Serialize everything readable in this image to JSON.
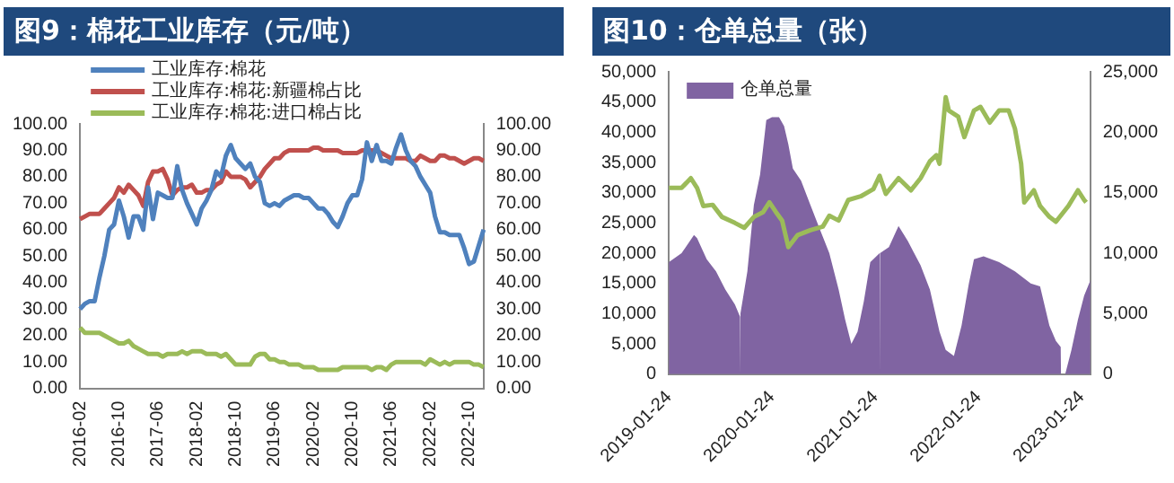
{
  "chart_data": [
    {
      "type": "line",
      "title": "图9：棉花工业库存（元/吨）",
      "legend": "top",
      "categories": [
        "2016-02",
        null,
        null,
        null,
        null,
        null,
        null,
        null,
        "2016-10",
        null,
        null,
        null,
        null,
        null,
        null,
        null,
        "2017-06",
        null,
        null,
        null,
        null,
        null,
        null,
        null,
        "2018-02",
        null,
        null,
        null,
        null,
        null,
        null,
        null,
        "2018-10",
        null,
        null,
        null,
        null,
        null,
        null,
        null,
        "2019-06",
        null,
        null,
        null,
        null,
        null,
        null,
        null,
        "2020-02",
        null,
        null,
        null,
        null,
        null,
        null,
        null,
        "2020-10",
        null,
        null,
        null,
        null,
        null,
        null,
        null,
        "2021-06",
        null,
        null,
        null,
        null,
        null,
        null,
        null,
        "2022-02",
        null,
        null,
        null,
        null,
        null,
        null,
        null,
        "2022-10",
        null,
        null,
        null
      ],
      "ylim": [
        0,
        100
      ],
      "yticks": [
        {
          "value": 0,
          "label": "0.00"
        },
        {
          "value": 10,
          "label": "10.00"
        },
        {
          "value": 20,
          "label": "20.00"
        },
        {
          "value": 30,
          "label": "30.00"
        },
        {
          "value": 40,
          "label": "40.00"
        },
        {
          "value": 50,
          "label": "50.00"
        },
        {
          "value": 60,
          "label": "60.00"
        },
        {
          "value": 70,
          "label": "70.00"
        },
        {
          "value": 80,
          "label": "80.00"
        },
        {
          "value": 90,
          "label": "90.00"
        },
        {
          "value": 100,
          "label": "100.00"
        }
      ],
      "y2lim": [
        0,
        100
      ],
      "y2ticks": [
        {
          "value": 0,
          "label": "0.00"
        },
        {
          "value": 10,
          "label": "10.00"
        },
        {
          "value": 20,
          "label": "20.00"
        },
        {
          "value": 30,
          "label": "30.00"
        },
        {
          "value": 40,
          "label": "40.00"
        },
        {
          "value": 50,
          "label": "50.00"
        },
        {
          "value": 60,
          "label": "60.00"
        },
        {
          "value": 70,
          "label": "70.00"
        },
        {
          "value": 80,
          "label": "80.00"
        },
        {
          "value": 90,
          "label": "90.00"
        },
        {
          "value": 100,
          "label": "100.00"
        }
      ],
      "series": [
        {
          "name": "工业库存:棉花",
          "color": "#4f81bd",
          "values": [
            30,
            32,
            33,
            33,
            42,
            50,
            60,
            62,
            71,
            65,
            57,
            65,
            65,
            60,
            76,
            64,
            74,
            73,
            72,
            72,
            84,
            75,
            70,
            66,
            62,
            68,
            71,
            75,
            82,
            80,
            88,
            92,
            87,
            85,
            83,
            85,
            80,
            78,
            70,
            69,
            70,
            69,
            71,
            72,
            73,
            73,
            72,
            72,
            70,
            68,
            68,
            66,
            63,
            61,
            65,
            70,
            73,
            73,
            79,
            93,
            86,
            92,
            86,
            86,
            85,
            91,
            96,
            90,
            86,
            84,
            80,
            77,
            74,
            65,
            59,
            59,
            58,
            58,
            58,
            53,
            47,
            48,
            54,
            60
          ]
        },
        {
          "name": "工业库存:棉花:新疆棉占比",
          "color": "#c0504d",
          "values": [
            64,
            65,
            66,
            66,
            66,
            68,
            70,
            72,
            76,
            74,
            77,
            75,
            73,
            69,
            78,
            82,
            82,
            83,
            79,
            73,
            75,
            76,
            76,
            77,
            74,
            74,
            75,
            75,
            77,
            78,
            82,
            80,
            80,
            80,
            79,
            76,
            78,
            80,
            83,
            85,
            87,
            87,
            89,
            90,
            90,
            90,
            90,
            90,
            91,
            91,
            90,
            90,
            90,
            90,
            89,
            89,
            89,
            89,
            90,
            90,
            90,
            90,
            89,
            88,
            87,
            87,
            87,
            87,
            86,
            86,
            88,
            87,
            86,
            86,
            88,
            88,
            87,
            87,
            86,
            85,
            86,
            87,
            87,
            86
          ]
        },
        {
          "name": "工业库存:棉花:进口棉占比",
          "color": "#9bbb59",
          "values": [
            23,
            21,
            21,
            21,
            21,
            20,
            19,
            18,
            17,
            17,
            18,
            16,
            15,
            14,
            13,
            13,
            13,
            12,
            13,
            13,
            13,
            14,
            13,
            14,
            14,
            14,
            13,
            13,
            13,
            12,
            13,
            11,
            9,
            9,
            9,
            9,
            12,
            13,
            13,
            11,
            11,
            10,
            10,
            9,
            9,
            9,
            8,
            8,
            8,
            7,
            7,
            7,
            7,
            7,
            8,
            8,
            8,
            8,
            8,
            8,
            7,
            8,
            8,
            7,
            9,
            10,
            10,
            10,
            10,
            10,
            10,
            9,
            11,
            10,
            9,
            10,
            9,
            10,
            10,
            10,
            10,
            9,
            9,
            8
          ]
        }
      ]
    },
    {
      "type": "area",
      "title": "图10：仓单总量（张）",
      "legend": "top left",
      "xlim": [
        "2019-01-24",
        "2023-02-24"
      ],
      "xticks": [
        "2019-01-24",
        "2020-01-24",
        "2021-01-24",
        "2022-01-24",
        "2023-01-24"
      ],
      "ylim": [
        0,
        50000
      ],
      "yticks": [
        {
          "value": 0,
          "label": "0"
        },
        {
          "value": 5000,
          "label": "5,000"
        },
        {
          "value": 10000,
          "label": "10,000"
        },
        {
          "value": 15000,
          "label": "15,000"
        },
        {
          "value": 20000,
          "label": "20,000"
        },
        {
          "value": 25000,
          "label": "25,000"
        },
        {
          "value": 30000,
          "label": "30,000"
        },
        {
          "value": 35000,
          "label": "35,000"
        },
        {
          "value": 40000,
          "label": "40,000"
        },
        {
          "value": 45000,
          "label": "45,000"
        },
        {
          "value": 50000,
          "label": "50,000"
        }
      ],
      "y2lim": [
        0,
        25000
      ],
      "y2ticks": [
        {
          "value": 0,
          "label": "0"
        },
        {
          "value": 5000,
          "label": "5,000"
        },
        {
          "value": 10000,
          "label": "10,000"
        },
        {
          "value": 15000,
          "label": "15,000"
        },
        {
          "value": 20000,
          "label": "20,000"
        },
        {
          "value": 25000,
          "label": "25,000"
        }
      ],
      "series": [
        {
          "name": "仓单总量",
          "color": "#8064a2",
          "x": [
            "2019-01-24",
            "2019-03-10",
            "2019-04-23",
            "2019-05-04",
            "2019-06-07",
            "2019-07-10",
            "2019-08-12",
            "2019-09-15",
            "2019-10-03",
            "2019-10-04",
            "2019-10-05",
            "2019-10-29",
            "2019-11-21",
            "2019-12-13",
            "2020-01-04",
            "2020-01-24",
            "2020-02-18",
            "2020-03-07",
            "2020-03-22",
            "2020-04-07",
            "2020-05-06",
            "2020-06-08",
            "2020-07-11",
            "2020-08-14",
            "2020-09-16",
            "2020-10-09",
            "2020-10-31",
            "2020-11-22",
            "2020-12-14",
            "2021-01-06",
            "2021-02-08",
            "2021-02-09",
            "2021-02-10",
            "2021-03-13",
            "2021-04-16",
            "2021-05-19",
            "2021-07-03",
            "2021-08-05",
            "2021-09-08",
            "2021-09-30",
            "2021-10-29",
            "2021-11-25",
            "2021-12-21",
            "2022-01-08",
            "2022-02-11",
            "2022-04-07",
            "2022-06-02",
            "2022-07-28",
            "2022-08-30",
            "2022-10-02",
            "2022-10-25",
            "2022-11-11",
            "2022-11-12",
            "2022-11-27",
            "2022-12-19",
            "2023-01-11",
            "2023-02-02",
            "2023-02-24"
          ],
          "values": [
            18500,
            20000,
            23000,
            22500,
            19000,
            17000,
            14000,
            11500,
            9500,
            0,
            10000,
            17000,
            28000,
            33000,
            42000,
            42500,
            42500,
            41000,
            38000,
            34000,
            32000,
            28000,
            24000,
            20000,
            14000,
            9000,
            5000,
            7000,
            12000,
            18500,
            20000,
            0,
            20000,
            21000,
            24500,
            22000,
            18000,
            14000,
            7000,
            4000,
            3000,
            8000,
            15000,
            19000,
            19500,
            18500,
            17000,
            15000,
            14500,
            8000,
            5500,
            4500,
            0,
            0,
            4000,
            9000,
            13000,
            15500
          ]
        },
        {
          "type": "line",
          "axis": "y2",
          "color": "#9bbb59",
          "x": [
            "2019-01-24",
            "2019-03-10",
            "2019-04-12",
            "2019-05-04",
            "2019-05-26",
            "2019-06-28",
            "2019-07-31",
            "2019-09-15",
            "2019-10-18",
            "2019-11-21",
            "2019-12-24",
            "2020-01-15",
            "2020-02-07",
            "2020-02-29",
            "2020-03-22",
            "2020-04-24",
            "2020-06-08",
            "2020-07-22",
            "2020-08-14",
            "2020-09-16",
            "2020-10-20",
            "2020-12-03",
            "2021-01-17",
            "2021-02-08",
            "2021-03-02",
            "2021-04-16",
            "2021-05-30",
            "2021-07-03",
            "2021-08-05",
            "2021-08-28",
            "2021-09-08",
            "2021-09-30",
            "2021-10-11",
            "2021-11-13",
            "2021-12-05",
            "2022-01-08",
            "2022-01-31",
            "2022-03-05",
            "2022-04-07",
            "2022-05-11",
            "2022-06-02",
            "2022-06-24",
            "2022-07-05",
            "2022-08-08",
            "2022-08-30",
            "2022-10-02",
            "2022-10-25",
            "2022-12-08",
            "2023-01-11",
            "2023-02-02",
            "2023-02-09"
          ],
          "values": [
            15400,
            15400,
            16200,
            15400,
            13900,
            14000,
            13000,
            12500,
            12100,
            13000,
            13400,
            14200,
            13400,
            12700,
            10500,
            11500,
            11900,
            12200,
            13100,
            12700,
            14400,
            14700,
            15300,
            16400,
            14900,
            16200,
            15200,
            16200,
            17600,
            18100,
            17400,
            22900,
            21800,
            21300,
            19600,
            21800,
            22100,
            20800,
            21800,
            21800,
            20300,
            17400,
            14200,
            15200,
            13900,
            13000,
            12600,
            13900,
            15200,
            14400,
            14200
          ]
        }
      ]
    }
  ]
}
